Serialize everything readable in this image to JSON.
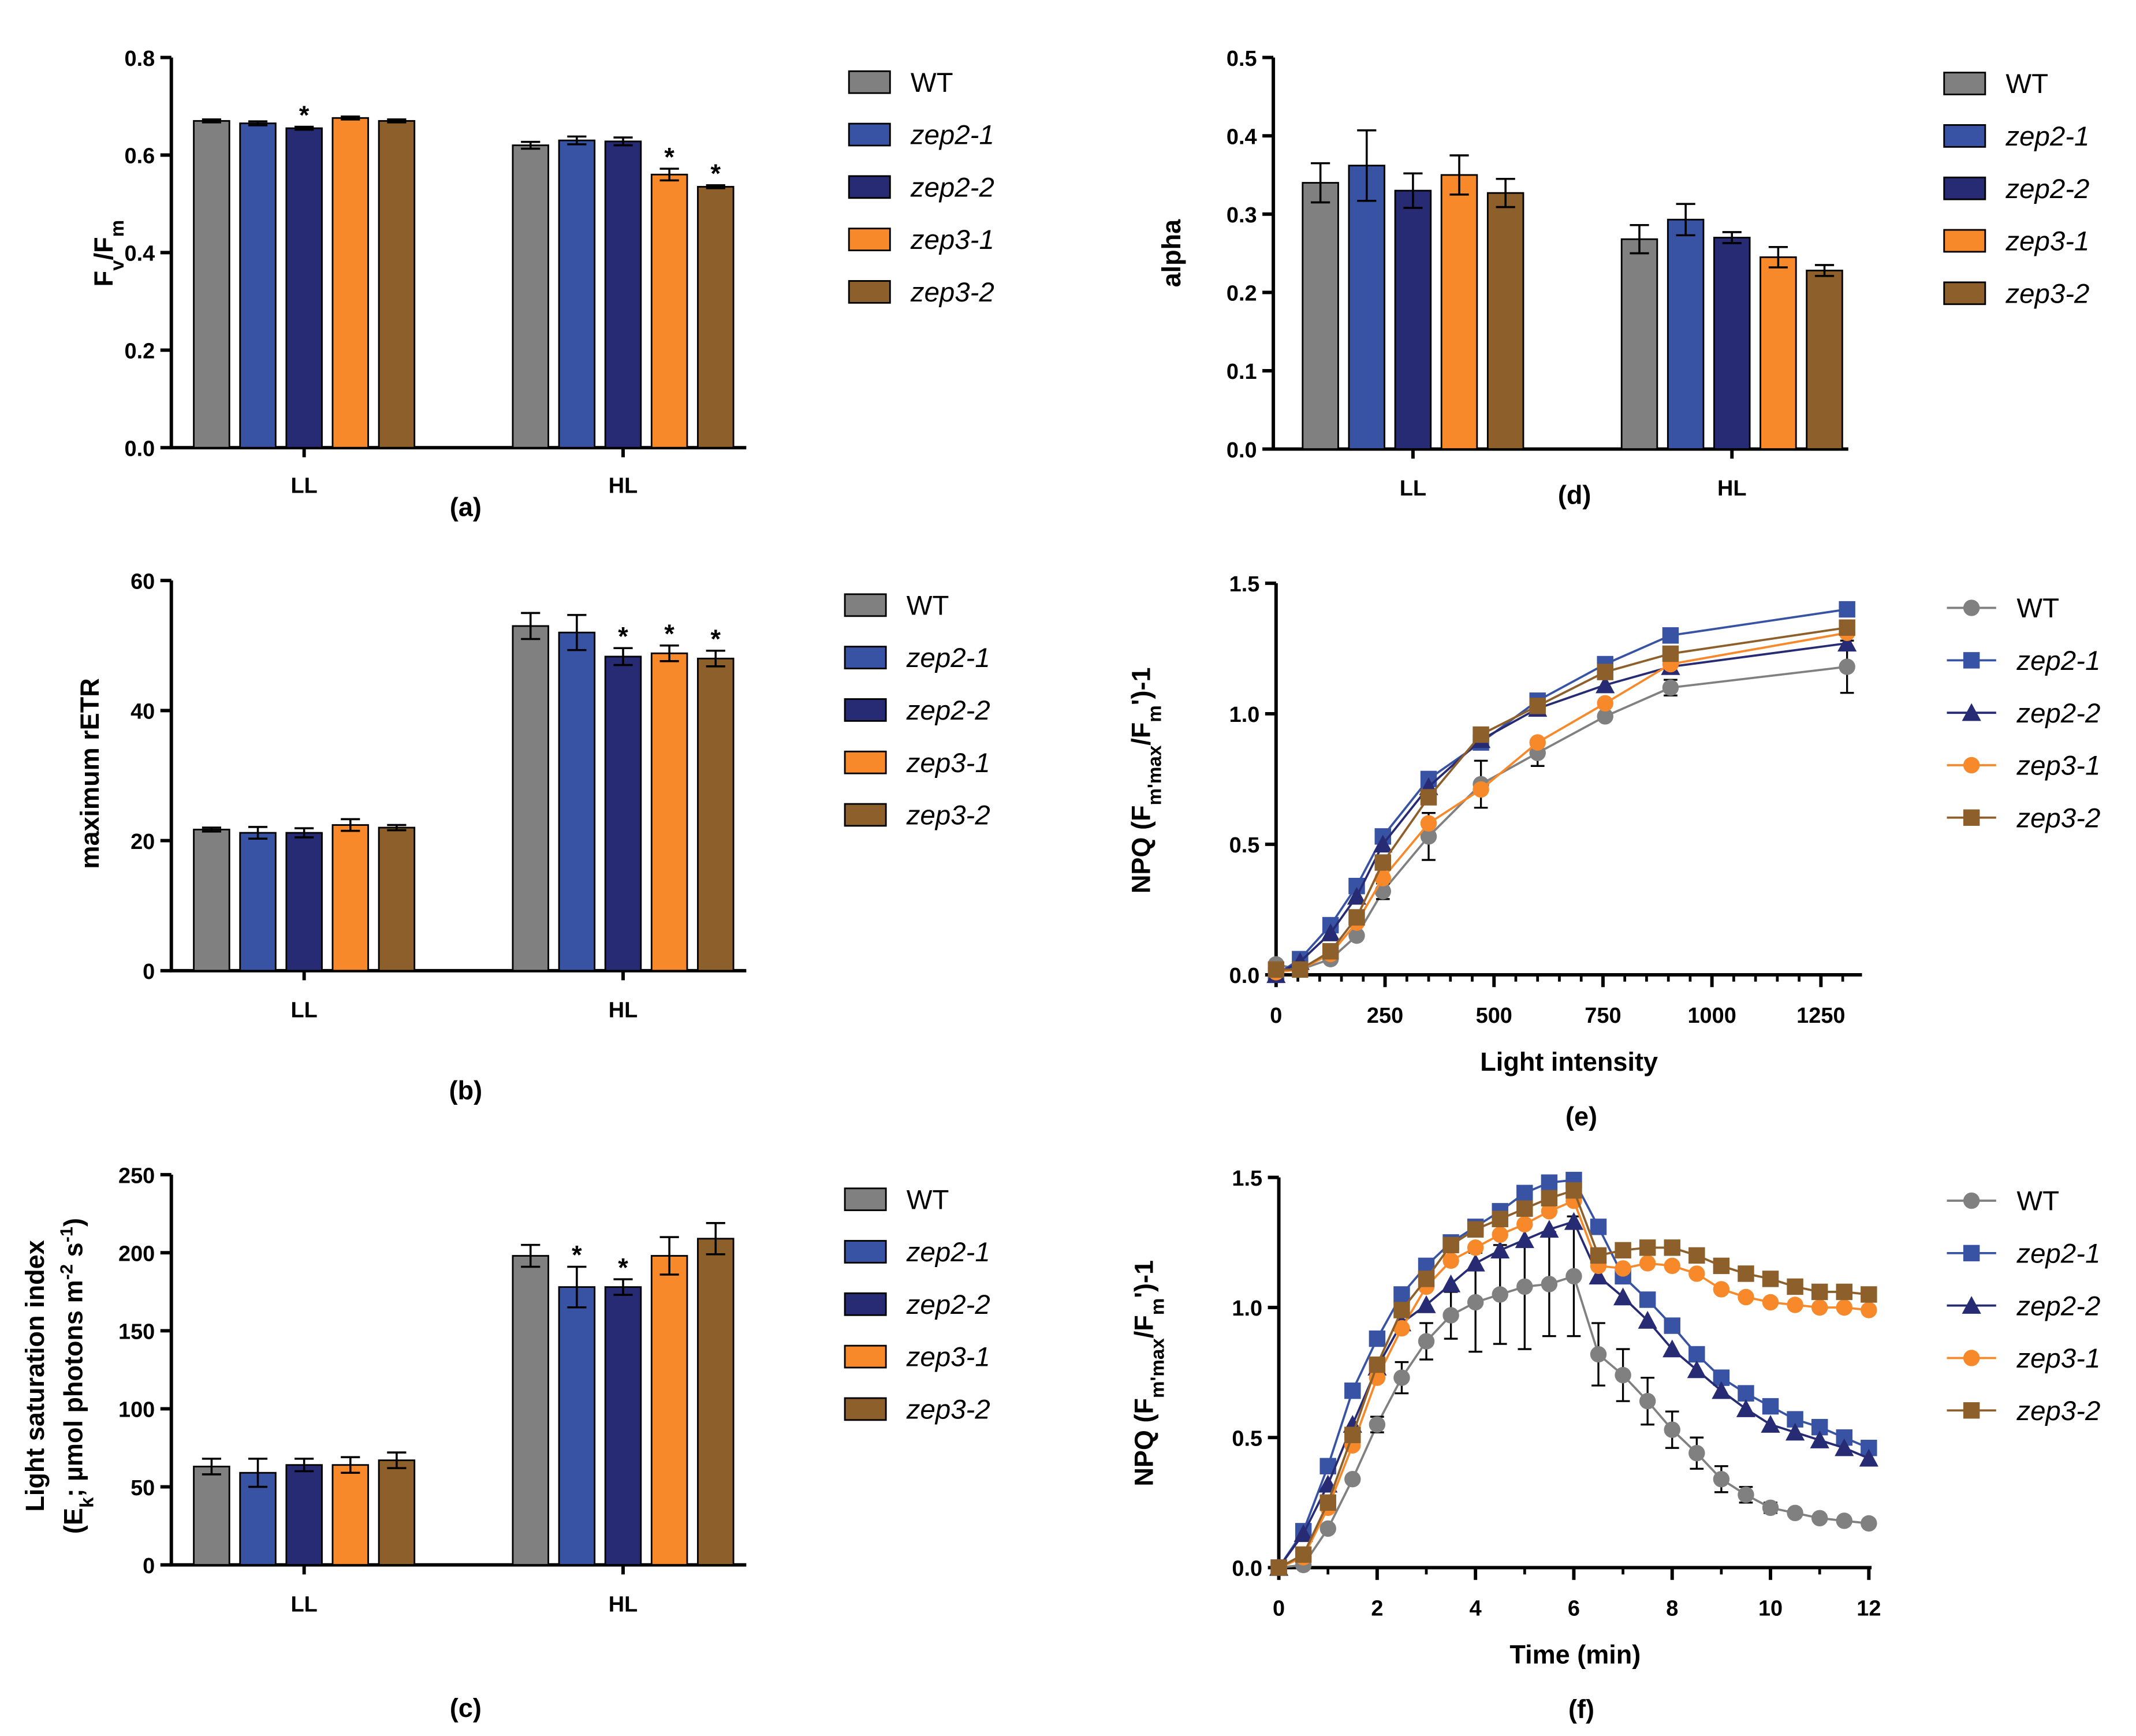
{
  "colors": {
    "WT": "#808080",
    "zep2-1": "#3953a4",
    "zep2-2": "#262b73",
    "zep3-1": "#f7892a",
    "zep3-2": "#8d5f2a"
  },
  "legend": [
    "WT",
    "zep2-1",
    "zep2-2",
    "zep3-1",
    "zep3-2"
  ],
  "markers": {
    "WT": "circle",
    "zep2-1": "square",
    "zep2-2": "triangle",
    "zep3-1": "circle",
    "zep3-2": "square"
  },
  "chart_data": [
    {
      "id": "a",
      "type": "bar",
      "panel_label": "(a)",
      "ylabel_parts": [
        {
          "t": "F"
        },
        {
          "t": "v",
          "sub": true
        },
        {
          "t": "/F"
        },
        {
          "t": "m",
          "sub": true
        }
      ],
      "ylim": [
        0,
        0.8
      ],
      "yticks": [
        "0.0",
        "0.2",
        "0.4",
        "0.6",
        "0.8"
      ],
      "categories": [
        "LL",
        "HL"
      ],
      "series": [
        {
          "name": "WT",
          "values": [
            0.67,
            0.62
          ],
          "errors": [
            0.003,
            0.007
          ]
        },
        {
          "name": "zep2-1",
          "values": [
            0.665,
            0.63
          ],
          "errors": [
            0.004,
            0.008
          ]
        },
        {
          "name": "zep2-2",
          "values": [
            0.655,
            0.628
          ],
          "errors": [
            0.003,
            0.008
          ]
        },
        {
          "name": "zep3-1",
          "values": [
            0.676,
            0.56
          ],
          "errors": [
            0.003,
            0.012
          ]
        },
        {
          "name": "zep3-2",
          "values": [
            0.67,
            0.535
          ],
          "errors": [
            0.003,
            0.003
          ]
        }
      ],
      "significance": [
        [
          false,
          false
        ],
        [
          false,
          false
        ],
        [
          true,
          false
        ],
        [
          false,
          true
        ],
        [
          false,
          true
        ]
      ],
      "star": "*"
    },
    {
      "id": "b",
      "type": "bar",
      "panel_label": "(b)",
      "ylabel_parts": [
        {
          "t": "maximum rETR"
        }
      ],
      "ylim": [
        0,
        60
      ],
      "yticks": [
        "0",
        "20",
        "40",
        "60"
      ],
      "categories": [
        "LL",
        "HL"
      ],
      "series": [
        {
          "name": "WT",
          "values": [
            21.7,
            53.0
          ],
          "errors": [
            0.3,
            2.0
          ]
        },
        {
          "name": "zep2-1",
          "values": [
            21.2,
            52.0
          ],
          "errors": [
            0.9,
            2.7
          ]
        },
        {
          "name": "zep2-2",
          "values": [
            21.2,
            48.3
          ],
          "errors": [
            0.7,
            1.3
          ]
        },
        {
          "name": "zep3-1",
          "values": [
            22.4,
            48.8
          ],
          "errors": [
            0.9,
            1.2
          ]
        },
        {
          "name": "zep3-2",
          "values": [
            22.0,
            48.0
          ],
          "errors": [
            0.4,
            1.2
          ]
        }
      ],
      "significance": [
        [
          false,
          false
        ],
        [
          false,
          false
        ],
        [
          false,
          true
        ],
        [
          false,
          true
        ],
        [
          false,
          true
        ]
      ],
      "star": "*"
    },
    {
      "id": "c",
      "type": "bar",
      "panel_label": "(c)",
      "ylabel_parts": [
        {
          "t": "Light saturation index"
        }
      ],
      "ylabel2_parts": [
        {
          "t": "(E"
        },
        {
          "t": "k",
          "sub": true
        },
        {
          "t": "; µmol photons m"
        },
        {
          "t": "-2",
          "sup": true
        },
        {
          "t": " s"
        },
        {
          "t": "-1",
          "sup": true
        },
        {
          "t": ")"
        }
      ],
      "ylim": [
        0,
        250
      ],
      "yticks": [
        "0",
        "50",
        "100",
        "150",
        "200",
        "250"
      ],
      "categories": [
        "LL",
        "HL"
      ],
      "series": [
        {
          "name": "WT",
          "values": [
            63,
            198
          ],
          "errors": [
            5,
            7
          ]
        },
        {
          "name": "zep2-1",
          "values": [
            59,
            178
          ],
          "errors": [
            9,
            13
          ]
        },
        {
          "name": "zep2-2",
          "values": [
            64,
            178
          ],
          "errors": [
            4,
            5
          ]
        },
        {
          "name": "zep3-1",
          "values": [
            64,
            198
          ],
          "errors": [
            5,
            12
          ]
        },
        {
          "name": "zep3-2",
          "values": [
            67,
            209
          ],
          "errors": [
            5,
            10
          ]
        }
      ],
      "significance": [
        [
          false,
          false
        ],
        [
          false,
          true
        ],
        [
          false,
          true
        ],
        [
          false,
          false
        ],
        [
          false,
          false
        ]
      ],
      "star": "*"
    },
    {
      "id": "d",
      "type": "bar",
      "panel_label": "(d)",
      "ylabel_parts": [
        {
          "t": "alpha"
        }
      ],
      "ylim": [
        0,
        0.5
      ],
      "yticks": [
        "0.0",
        "0.1",
        "0.2",
        "0.3",
        "0.4",
        "0.5"
      ],
      "categories": [
        "LL",
        "HL"
      ],
      "series": [
        {
          "name": "WT",
          "values": [
            0.34,
            0.268
          ],
          "errors": [
            0.025,
            0.018
          ]
        },
        {
          "name": "zep2-1",
          "values": [
            0.362,
            0.293
          ],
          "errors": [
            0.045,
            0.02
          ]
        },
        {
          "name": "zep2-2",
          "values": [
            0.33,
            0.27
          ],
          "errors": [
            0.022,
            0.007
          ]
        },
        {
          "name": "zep3-1",
          "values": [
            0.35,
            0.245
          ],
          "errors": [
            0.025,
            0.013
          ]
        },
        {
          "name": "zep3-2",
          "values": [
            0.327,
            0.228
          ],
          "errors": [
            0.018,
            0.007
          ]
        }
      ],
      "significance": [
        [
          false,
          false
        ],
        [
          false,
          false
        ],
        [
          false,
          false
        ],
        [
          false,
          false
        ],
        [
          false,
          false
        ]
      ],
      "star": "*"
    },
    {
      "id": "e",
      "type": "line",
      "panel_label": "(e)",
      "xlabel": "Light intensity",
      "ylabel_parts": [
        {
          "t": "NPQ (F"
        },
        {
          "t": "m'max",
          "sub": true
        },
        {
          "t": "/F"
        },
        {
          "t": "m",
          "sub": true
        },
        {
          "t": "')-1"
        }
      ],
      "xlim": [
        0,
        1250
      ],
      "xticks": [
        "0",
        "250",
        "500",
        "750",
        "1000",
        "1250"
      ],
      "ylim": [
        0,
        1.5
      ],
      "yticks": [
        "0.0",
        "0.5",
        "1.0",
        "1.5"
      ],
      "x": [
        0,
        55,
        125,
        185,
        245,
        350,
        470,
        600,
        755,
        905,
        1310
      ],
      "series": [
        {
          "name": "WT",
          "values": [
            0.04,
            0.02,
            0.06,
            0.15,
            0.32,
            0.53,
            0.73,
            0.85,
            0.99,
            1.1,
            1.18
          ],
          "errors": [
            0,
            0,
            0,
            0.01,
            0.03,
            0.09,
            0.09,
            0.05,
            0.01,
            0.03,
            0.1
          ]
        },
        {
          "name": "zep2-1",
          "values": [
            0.0,
            0.06,
            0.19,
            0.34,
            0.53,
            0.75,
            0.89,
            1.05,
            1.19,
            1.3,
            1.4
          ]
        },
        {
          "name": "zep2-2",
          "values": [
            0.0,
            0.05,
            0.16,
            0.3,
            0.5,
            0.72,
            0.9,
            1.02,
            1.11,
            1.18,
            1.27
          ]
        },
        {
          "name": "zep3-1",
          "values": [
            0.01,
            0.02,
            0.08,
            0.2,
            0.37,
            0.58,
            0.71,
            0.89,
            1.04,
            1.19,
            1.31
          ]
        },
        {
          "name": "zep3-2",
          "values": [
            0.02,
            0.02,
            0.09,
            0.22,
            0.43,
            0.68,
            0.92,
            1.03,
            1.16,
            1.23,
            1.33
          ]
        }
      ]
    },
    {
      "id": "f",
      "type": "line",
      "panel_label": "(f)",
      "xlabel": "Time (min)",
      "ylabel_parts": [
        {
          "t": "NPQ (F"
        },
        {
          "t": "m'max",
          "sub": true
        },
        {
          "t": "/F"
        },
        {
          "t": "m",
          "sub": true
        },
        {
          "t": "')-1"
        }
      ],
      "xlim": [
        0,
        12
      ],
      "xticks": [
        "0",
        "2",
        "4",
        "6",
        "8",
        "10",
        "12"
      ],
      "ylim": [
        0,
        1.5
      ],
      "yticks": [
        "0.0",
        "0.5",
        "1.0",
        "1.5"
      ],
      "x": [
        0,
        0.5,
        1,
        1.5,
        2,
        2.5,
        3,
        3.5,
        4,
        4.5,
        5,
        5.5,
        6,
        6.5,
        7,
        7.5,
        8,
        8.5,
        9,
        9.5,
        10,
        10.5,
        11,
        11.5,
        12
      ],
      "series": [
        {
          "name": "WT",
          "values": [
            0,
            0.01,
            0.15,
            0.34,
            0.55,
            0.73,
            0.87,
            0.97,
            1.02,
            1.05,
            1.08,
            1.09,
            1.12,
            0.82,
            0.74,
            0.64,
            0.53,
            0.44,
            0.34,
            0.28,
            0.23,
            0.21,
            0.19,
            0.18,
            0.17
          ],
          "errors": [
            0,
            0,
            0.01,
            0.01,
            0.03,
            0.06,
            0.07,
            0.09,
            0.19,
            0.19,
            0.24,
            0.2,
            0.23,
            0.12,
            0.1,
            0.09,
            0.07,
            0.06,
            0.05,
            0.03,
            0.02,
            0,
            0,
            0,
            0
          ]
        },
        {
          "name": "zep2-1",
          "values": [
            0,
            0.14,
            0.39,
            0.68,
            0.88,
            1.05,
            1.16,
            1.25,
            1.31,
            1.37,
            1.44,
            1.48,
            1.49,
            1.31,
            1.12,
            1.03,
            0.93,
            0.82,
            0.73,
            0.67,
            0.62,
            0.57,
            0.54,
            0.5,
            0.46
          ]
        },
        {
          "name": "zep2-2",
          "values": [
            0,
            0.13,
            0.32,
            0.55,
            0.77,
            0.94,
            1.01,
            1.09,
            1.17,
            1.22,
            1.26,
            1.3,
            1.33,
            1.12,
            1.04,
            0.95,
            0.84,
            0.76,
            0.68,
            0.61,
            0.55,
            0.52,
            0.49,
            0.46,
            0.42
          ]
        },
        {
          "name": "zep3-1",
          "values": [
            0,
            0.04,
            0.23,
            0.47,
            0.73,
            0.92,
            1.08,
            1.18,
            1.23,
            1.28,
            1.32,
            1.37,
            1.41,
            1.16,
            1.15,
            1.17,
            1.16,
            1.13,
            1.07,
            1.04,
            1.02,
            1.01,
            1.0,
            1.0,
            0.99
          ]
        },
        {
          "name": "zep3-2",
          "values": [
            0,
            0.05,
            0.25,
            0.51,
            0.78,
            0.99,
            1.11,
            1.24,
            1.3,
            1.34,
            1.38,
            1.42,
            1.45,
            1.2,
            1.22,
            1.23,
            1.23,
            1.2,
            1.16,
            1.13,
            1.11,
            1.08,
            1.06,
            1.06,
            1.05
          ]
        }
      ]
    }
  ]
}
